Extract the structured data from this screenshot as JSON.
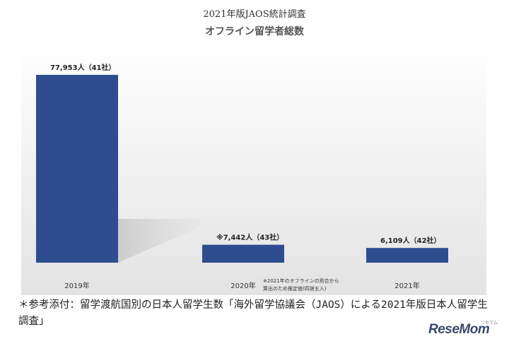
{
  "header": {
    "title_top": "2021年版JAOS統計調査",
    "title_main": "オフライン留学者総数"
  },
  "chart_data": {
    "type": "bar",
    "categories": [
      "2019年",
      "2020年",
      "2021年"
    ],
    "values": [
      77953,
      7442,
      6109
    ],
    "value_labels": [
      "77,953人（41社）",
      "※7,442人（43社）",
      "6,109人（42社）"
    ],
    "annotation": [
      "※2021年のオフラインの割合から",
      "算出のため推定値(四捨五入)"
    ],
    "ylim": [
      0,
      80000
    ],
    "bar_color": "#2e4d8f",
    "grid": false,
    "legend": "none"
  },
  "caption": "＊参考添付：留学渡航国別の日本人留学生数「海外留学協議会（JAOS）による2021年版日本人留学生調査」",
  "brand": {
    "name": "ReseMom",
    "sub": "リセマム",
    "color": "#3a4a6b"
  }
}
